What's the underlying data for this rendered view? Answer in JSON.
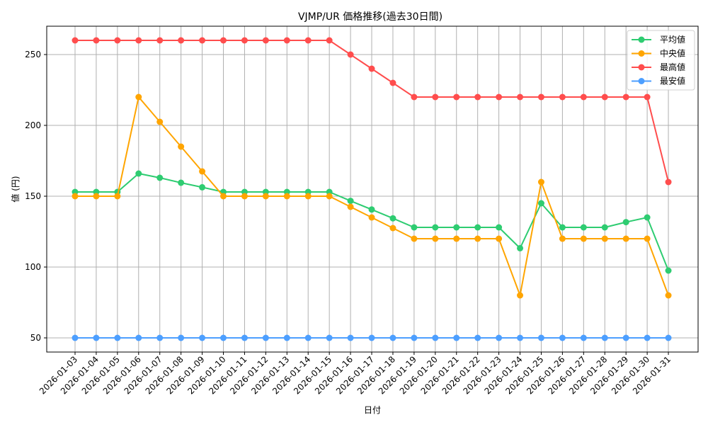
{
  "chart_data": {
    "type": "line",
    "title": "VJMP/UR 価格推移(過去30日間)",
    "xlabel": "日付",
    "ylabel": "値 (円)",
    "ylim": [
      40,
      270
    ],
    "yticks": [
      50,
      100,
      150,
      200,
      250
    ],
    "grid": true,
    "legend_position": "upper right",
    "categories": [
      "2026-01-03",
      "2026-01-04",
      "2026-01-05",
      "2026-01-06",
      "2026-01-07",
      "2026-01-08",
      "2026-01-09",
      "2026-01-10",
      "2026-01-11",
      "2026-01-12",
      "2026-01-13",
      "2026-01-14",
      "2026-01-15",
      "2026-01-16",
      "2026-01-17",
      "2026-01-18",
      "2026-01-19",
      "2026-01-20",
      "2026-01-21",
      "2026-01-22",
      "2026-01-23",
      "2026-01-24",
      "2026-01-25",
      "2026-01-26",
      "2026-01-27",
      "2026-01-28",
      "2026-01-29",
      "2026-01-30",
      "2026-01-31"
    ],
    "series": [
      {
        "name": "平均値",
        "color": "#2ecc71",
        "values": [
          153,
          153,
          153,
          166,
          163,
          159.5,
          156.3,
          153,
          153,
          153,
          153,
          153,
          153,
          146.7,
          140.6,
          134.4,
          128,
          128,
          128,
          128,
          128,
          113.3,
          145,
          128,
          128,
          128,
          131.7,
          135,
          97.5
        ]
      },
      {
        "name": "中央値",
        "color": "#ffa500",
        "values": [
          150,
          150,
          150,
          220,
          202.5,
          185,
          167.5,
          150,
          150,
          150,
          150,
          150,
          150,
          142.5,
          135,
          127.5,
          120,
          120,
          120,
          120,
          120,
          80,
          160,
          120,
          120,
          120,
          120,
          120,
          80
        ]
      },
      {
        "name": "最高値",
        "color": "#ff4d4d",
        "values": [
          260,
          260,
          260,
          260,
          260,
          260,
          260,
          260,
          260,
          260,
          260,
          260,
          260,
          250,
          240,
          230,
          220,
          220,
          220,
          220,
          220,
          220,
          220,
          220,
          220,
          220,
          220,
          220,
          160
        ]
      },
      {
        "name": "最安値",
        "color": "#4d9fff",
        "values": [
          50,
          50,
          50,
          50,
          50,
          50,
          50,
          50,
          50,
          50,
          50,
          50,
          50,
          50,
          50,
          50,
          50,
          50,
          50,
          50,
          50,
          50,
          50,
          50,
          50,
          50,
          50,
          50,
          50
        ]
      }
    ]
  }
}
